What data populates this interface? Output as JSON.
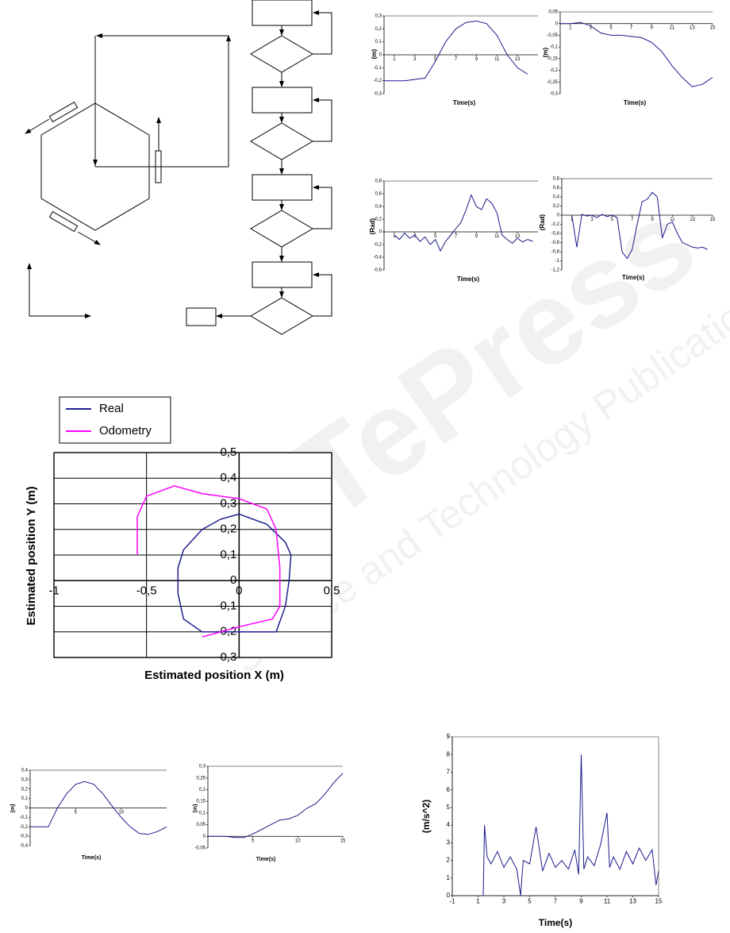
{
  "watermark": {
    "logo": "SciTePress",
    "tagline": "Science and Technology Publications"
  },
  "chart_data": [
    {
      "type": "line",
      "y_label": "(m)",
      "x_label": "Time(s)",
      "color": "#1a1a8c",
      "xaxis_position": "zero",
      "grid": false,
      "x": [
        0,
        1,
        2,
        3,
        4,
        5,
        6,
        7,
        8,
        9,
        10,
        11,
        12,
        13,
        14
      ],
      "values": [
        -0.2,
        -0.2,
        -0.2,
        -0.19,
        -0.18,
        -0.05,
        0.1,
        0.2,
        0.25,
        0.26,
        0.24,
        0.15,
        0.0,
        -0.1,
        -0.15
      ],
      "xlim": [
        0,
        15
      ],
      "ylim": [
        -0.3,
        0.3
      ],
      "xticks": [
        1,
        3,
        5,
        7,
        9,
        11,
        13
      ],
      "yticks": [
        {
          "value": 0.3,
          "label": "0,3"
        },
        {
          "value": 0.2,
          "label": "0,2"
        },
        {
          "value": 0.1,
          "label": "0,1"
        },
        0,
        {
          "value": -0.1,
          "label": "-0,1"
        },
        {
          "value": -0.2,
          "label": "-0,2"
        },
        {
          "value": -0.3,
          "label": "-0,3"
        }
      ]
    },
    {
      "type": "line",
      "y_label": "(m)",
      "x_label": "Time(s)",
      "color": "#1a1a8c",
      "xaxis_position": "zero",
      "grid": false,
      "x": [
        0,
        1,
        2,
        3,
        4,
        5,
        6,
        7,
        8,
        9,
        10,
        11,
        12,
        13,
        14,
        15
      ],
      "values": [
        0,
        0,
        0.005,
        -0.01,
        -0.04,
        -0.05,
        -0.05,
        -0.055,
        -0.06,
        -0.08,
        -0.12,
        -0.18,
        -0.23,
        -0.27,
        -0.26,
        -0.23
      ],
      "xlim": [
        0,
        15
      ],
      "ylim": [
        -0.3,
        0.05
      ],
      "xticks": [
        1,
        3,
        5,
        7,
        9,
        11,
        13,
        15
      ],
      "yticks": [
        {
          "value": 0.05,
          "label": "0,05"
        },
        0,
        {
          "value": -0.05,
          "label": "-0,05"
        },
        {
          "value": -0.1,
          "label": "-0,1"
        },
        {
          "value": -0.15,
          "label": "-0,15"
        },
        {
          "value": -0.2,
          "label": "-0,2"
        },
        {
          "value": -0.25,
          "label": "-0,25"
        },
        {
          "value": -0.3,
          "label": "-0,3"
        }
      ]
    },
    {
      "type": "line",
      "y_label": "(Rad)",
      "x_label": "Time(s)",
      "color": "#1a1a8c",
      "xaxis_position": "zero",
      "grid": false,
      "x": [
        1,
        1.5,
        2,
        2.5,
        3,
        3.5,
        4,
        4.5,
        5,
        5.5,
        6,
        6.5,
        7,
        7.5,
        8,
        8.5,
        9,
        9.5,
        10,
        10.5,
        11,
        11.5,
        12,
        12.5,
        13,
        13.5,
        14,
        14.5
      ],
      "values": [
        -0.05,
        -0.12,
        -0.02,
        -0.1,
        -0.05,
        -0.15,
        -0.08,
        -0.2,
        -0.12,
        -0.3,
        -0.15,
        -0.05,
        0.05,
        0.15,
        0.35,
        0.58,
        0.4,
        0.35,
        0.52,
        0.45,
        0.3,
        -0.05,
        -0.12,
        -0.18,
        -0.1,
        -0.16,
        -0.12,
        -0.15
      ],
      "xlim": [
        0,
        15
      ],
      "ylim": [
        -0.6,
        0.8
      ],
      "xticks": [
        1,
        3,
        5,
        7,
        9,
        11,
        13
      ],
      "yticks": [
        {
          "value": 0.8,
          "label": "0,8"
        },
        {
          "value": 0.6,
          "label": "0,6"
        },
        {
          "value": 0.4,
          "label": "0,4"
        },
        {
          "value": 0.2,
          "label": "0,2"
        },
        0,
        {
          "value": -0.2,
          "label": "-0,2"
        },
        {
          "value": -0.4,
          "label": "-0,4"
        },
        {
          "value": -0.6,
          "label": "-0,6"
        }
      ]
    },
    {
      "type": "line",
      "y_label": "(Rad)",
      "x_label": "Time(s)",
      "color": "#1a1a8c",
      "xaxis_position": "zero",
      "grid": false,
      "x": [
        1,
        1.5,
        2,
        2.5,
        3,
        3.5,
        4,
        4.5,
        5,
        5.5,
        6,
        6.5,
        7,
        7.5,
        8,
        8.5,
        9,
        9.5,
        10,
        10.5,
        11,
        11.5,
        12,
        12.5,
        13,
        13.5,
        14,
        14.5
      ],
      "values": [
        0.0,
        -0.7,
        0.02,
        -0.02,
        0.0,
        -0.05,
        0.02,
        -0.03,
        0.0,
        -0.05,
        -0.8,
        -0.95,
        -0.75,
        -0.2,
        0.3,
        0.35,
        0.5,
        0.4,
        -0.5,
        -0.2,
        -0.15,
        -0.4,
        -0.6,
        -0.65,
        -0.7,
        -0.72,
        -0.7,
        -0.75
      ],
      "xlim": [
        0,
        15
      ],
      "ylim": [
        -1.2,
        0.8
      ],
      "xticks": [
        1,
        3,
        5,
        7,
        9,
        11,
        13,
        15
      ],
      "yticks": [
        {
          "value": 0.8,
          "label": "0,8"
        },
        {
          "value": 0.6,
          "label": "0,6"
        },
        {
          "value": 0.4,
          "label": "0,4"
        },
        {
          "value": 0.2,
          "label": "0,2"
        },
        0,
        {
          "value": -0.2,
          "label": "-0,2"
        },
        {
          "value": -0.4,
          "label": "-0,4"
        },
        {
          "value": -0.6,
          "label": "-0,6"
        },
        {
          "value": -0.8,
          "label": "-0,8"
        },
        {
          "value": -1,
          "label": "-1"
        },
        {
          "value": -1.2,
          "label": "-1,2"
        }
      ]
    },
    {
      "type": "line",
      "y_label": "Estimated position Y (m)",
      "x_label": "Estimated position X (m)",
      "xaxis_position": "zero",
      "yaxis_position": "zero",
      "grid": true,
      "legend": "top-left",
      "series": [
        {
          "name": "Real",
          "color": "#1f1f8f",
          "x": [
            0,
            0.15,
            0.25,
            0.28,
            0.27,
            0.25,
            0.2,
            0,
            -0.2,
            -0.3,
            -0.33,
            -0.33,
            -0.3,
            -0.2,
            -0.1,
            0
          ],
          "values": [
            0.26,
            0.22,
            0.15,
            0.1,
            0,
            -0.1,
            -0.2,
            -0.2,
            -0.2,
            -0.15,
            -0.05,
            0.05,
            0.12,
            0.2,
            0.24,
            0.26
          ]
        },
        {
          "name": "Odometry",
          "color": "#ff00ff",
          "x": [
            -0.55,
            -0.55,
            -0.5,
            -0.35,
            -0.2,
            0,
            0.15,
            0.2,
            0.22,
            0.22,
            0.18,
            0,
            -0.1,
            -0.2
          ],
          "values": [
            0.1,
            0.25,
            0.33,
            0.37,
            0.34,
            0.32,
            0.28,
            0.2,
            0.05,
            -0.1,
            -0.15,
            -0.18,
            -0.2,
            -0.22
          ]
        }
      ],
      "xlim": [
        -1,
        0.5
      ],
      "ylim": [
        -0.3,
        0.5
      ],
      "xticks": [
        -1,
        {
          "value": -0.5,
          "label": "-0,5"
        },
        0,
        {
          "value": 0.5,
          "label": "0,5"
        }
      ],
      "yticks": [
        {
          "value": 0.5,
          "label": "0,5"
        },
        {
          "value": 0.4,
          "label": "0,4"
        },
        {
          "value": 0.3,
          "label": "0,3"
        },
        {
          "value": 0.2,
          "label": "0,2"
        },
        {
          "value": 0.1,
          "label": "0,1"
        },
        0,
        {
          "value": -0.1,
          "label": "-0,1"
        },
        {
          "value": -0.2,
          "label": "-0,2"
        },
        {
          "value": -0.3,
          "label": "-0,3"
        }
      ]
    },
    {
      "type": "line",
      "y_label": "(m)",
      "x_label": "Time(s)",
      "color": "#1a1a8c",
      "xaxis_position": "zero",
      "grid": false,
      "x": [
        0,
        1,
        2,
        3,
        4,
        5,
        6,
        7,
        8,
        9,
        10,
        11,
        12,
        13,
        14,
        15
      ],
      "values": [
        -0.2,
        -0.2,
        -0.2,
        0,
        0.15,
        0.25,
        0.28,
        0.25,
        0.15,
        0.02,
        -0.1,
        -0.2,
        -0.27,
        -0.28,
        -0.25,
        -0.2
      ],
      "xlim": [
        0,
        15
      ],
      "ylim": [
        -0.4,
        0.4
      ],
      "xticks": [
        5,
        10
      ],
      "yticks": [
        {
          "value": 0.4,
          "label": "0,4"
        },
        {
          "value": 0.3,
          "label": "0,3"
        },
        {
          "value": 0.2,
          "label": "0,2"
        },
        {
          "value": 0.1,
          "label": "0,1"
        },
        0,
        {
          "value": -0.1,
          "label": "-0,1"
        },
        {
          "value": -0.2,
          "label": "-0,2"
        },
        {
          "value": -0.3,
          "label": "-0,3"
        },
        {
          "value": -0.4,
          "label": "-0,4"
        }
      ]
    },
    {
      "type": "line",
      "y_label": "(m)",
      "x_label": "Time(s)",
      "color": "#1a1a8c",
      "xaxis_position": "zero",
      "grid": false,
      "x": [
        0,
        1,
        2,
        3,
        4,
        5,
        6,
        7,
        8,
        9,
        10,
        11,
        12,
        13,
        14,
        15
      ],
      "values": [
        0,
        0,
        0,
        -0.005,
        -0.005,
        0.01,
        0.03,
        0.05,
        0.07,
        0.075,
        0.09,
        0.12,
        0.14,
        0.18,
        0.23,
        0.27
      ],
      "xlim": [
        0,
        15
      ],
      "ylim": [
        -0.05,
        0.3
      ],
      "xticks": [
        5,
        10,
        15
      ],
      "yticks": [
        {
          "value": 0.3,
          "label": "0,3"
        },
        {
          "value": 0.25,
          "label": "0,25"
        },
        {
          "value": 0.2,
          "label": "0,2"
        },
        {
          "value": 0.15,
          "label": "0,15"
        },
        {
          "value": 0.1,
          "label": "0,1"
        },
        {
          "value": 0.05,
          "label": "0,05"
        },
        0,
        {
          "value": -0.05,
          "label": "-0,05"
        }
      ]
    },
    {
      "type": "line",
      "y_label": "(m/s^2)",
      "x_label": "Time(s)",
      "color": "#1a1a8c",
      "xaxis_position": "bottom",
      "grid": false,
      "x": [
        1.4,
        1.5,
        1.7,
        2,
        2.5,
        3,
        3.5,
        4,
        4.3,
        4.5,
        5,
        5.5,
        6,
        6.5,
        7,
        7.5,
        8,
        8.5,
        8.8,
        9,
        9.2,
        9.5,
        10,
        10.5,
        11,
        11.2,
        11.5,
        12,
        12.5,
        13,
        13.5,
        14,
        14.5,
        14.8,
        15
      ],
      "values": [
        0,
        4,
        2.2,
        1.8,
        2.5,
        1.6,
        2.2,
        1.5,
        0,
        2,
        1.8,
        3.9,
        1.4,
        2.4,
        1.6,
        2,
        1.5,
        2.6,
        1.2,
        8,
        1.5,
        2.2,
        1.7,
        2.9,
        4.7,
        1.6,
        2.2,
        1.5,
        2.5,
        1.8,
        2.7,
        2.0,
        2.6,
        0.6,
        1.4
      ],
      "xlim": [
        -1,
        15
      ],
      "ylim": [
        0,
        9
      ],
      "xticks": [
        -1,
        1,
        3,
        5,
        7,
        9,
        11,
        13,
        15
      ],
      "yticks": [
        0,
        1,
        2,
        3,
        4,
        5,
        6,
        7,
        8,
        9
      ]
    }
  ]
}
